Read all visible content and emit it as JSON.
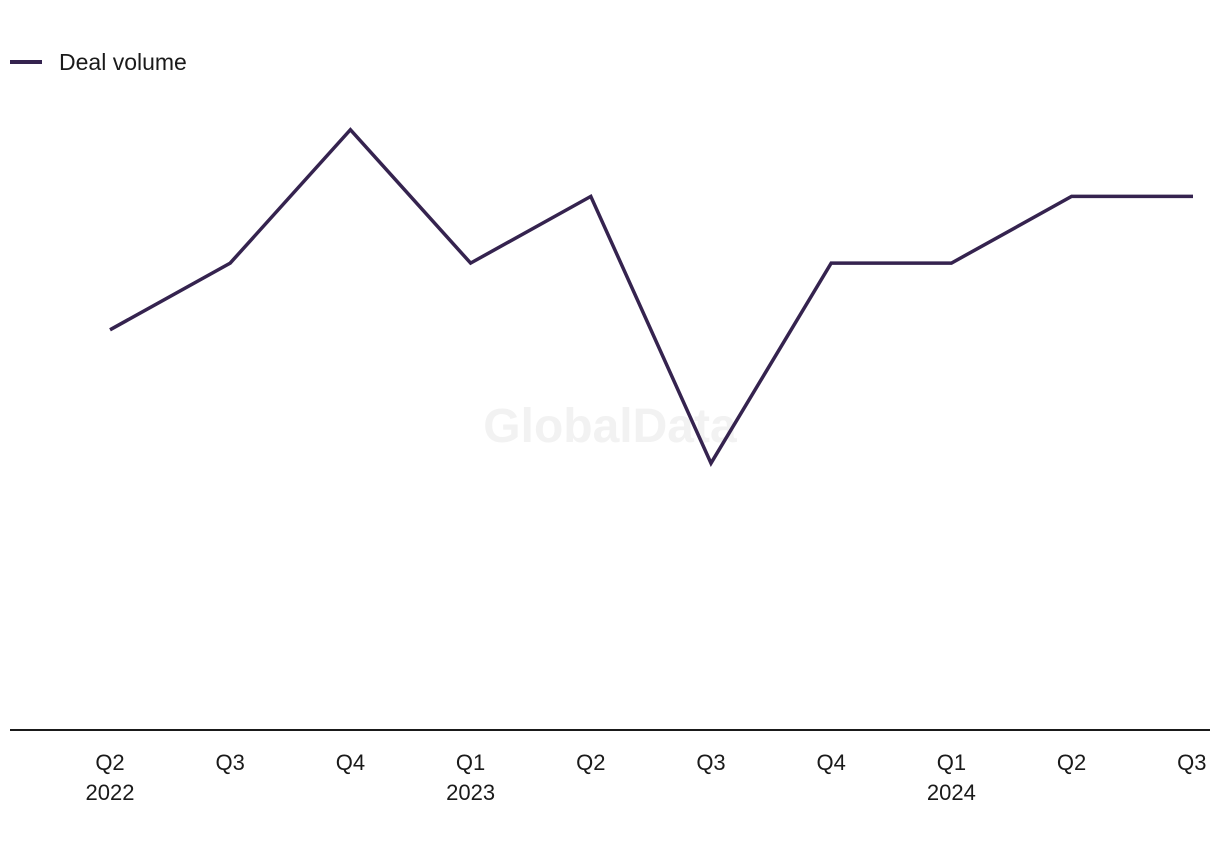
{
  "watermark": "GlobalData",
  "chart_data": {
    "type": "line",
    "categories": [
      "Q2",
      "Q3",
      "Q4",
      "Q1",
      "Q2",
      "Q3",
      "Q4",
      "Q1",
      "Q2",
      "Q3"
    ],
    "category_years": [
      "2022",
      "",
      "",
      "2023",
      "",
      "",
      "",
      "2024",
      "",
      ""
    ],
    "series": [
      {
        "name": "Deal volume",
        "color": "#35234f",
        "values": [
          6,
          7,
          9,
          7,
          8,
          4,
          7,
          7,
          8,
          8
        ]
      }
    ],
    "ylim": [
      0,
      11
    ],
    "legend": "top-left",
    "grid": false,
    "y_axis_labels": false,
    "baseline_color": "#1a1a1a"
  }
}
